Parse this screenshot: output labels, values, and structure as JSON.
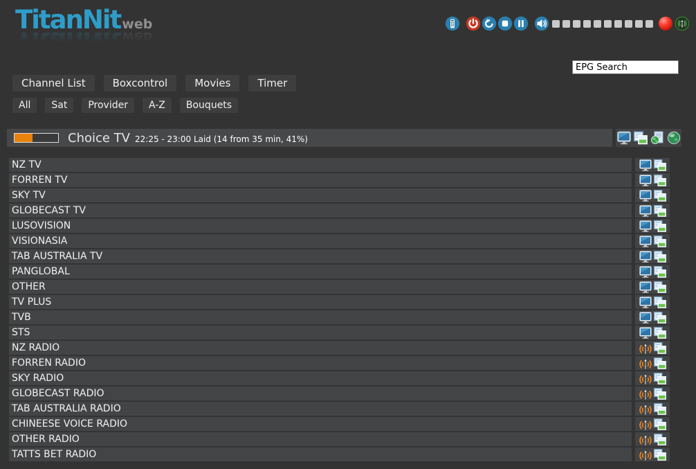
{
  "app": {
    "title": "TitanNit",
    "title_suffix": "web"
  },
  "header_toolbar": {
    "buttons": [
      {
        "id": "remote",
        "icon": "remote-control-icon"
      },
      {
        "id": "power",
        "icon": "power-icon"
      },
      {
        "id": "refresh",
        "icon": "refresh-icon"
      },
      {
        "id": "stop",
        "icon": "stop-icon"
      },
      {
        "id": "pause",
        "icon": "pause-icon"
      }
    ],
    "volume_icon": "speaker-icon",
    "volume_segments": 10,
    "record_indicator_icon": "red-ball-icon",
    "stream_status_icon": "antenna-icon"
  },
  "epg_search": {
    "value": "EPG Search"
  },
  "nav_tabs": [
    {
      "label": "Channel List"
    },
    {
      "label": "Boxcontrol"
    },
    {
      "label": "Movies"
    },
    {
      "label": "Timer"
    }
  ],
  "filter_tabs": [
    {
      "label": "All"
    },
    {
      "label": "Sat"
    },
    {
      "label": "Provider"
    },
    {
      "label": "A-Z"
    },
    {
      "label": "Bouquets"
    }
  ],
  "now_playing": {
    "channel_name": "Choice TV",
    "epg_info": "22:25 - 23:00 Laid (14 from 35 min, 41%)",
    "progress_percent": 41,
    "action_icons": [
      "switch-tv-icon",
      "copy-epg-icon",
      "epg-document-icon",
      "web-globe-icon"
    ]
  },
  "channel_list": {
    "rows": [
      {
        "label": "NZ TV",
        "type": "tv"
      },
      {
        "label": "FORREN TV",
        "type": "tv"
      },
      {
        "label": "SKY TV",
        "type": "tv"
      },
      {
        "label": "GLOBECAST TV",
        "type": "tv"
      },
      {
        "label": "LUSOVISION",
        "type": "tv"
      },
      {
        "label": "VISIONASIA",
        "type": "tv"
      },
      {
        "label": "TAB AUSTRALIA TV",
        "type": "tv"
      },
      {
        "label": "PANGLOBAL",
        "type": "tv"
      },
      {
        "label": "OTHER",
        "type": "tv"
      },
      {
        "label": "TV PLUS",
        "type": "tv"
      },
      {
        "label": "TVB",
        "type": "tv"
      },
      {
        "label": "STS",
        "type": "tv"
      },
      {
        "label": "NZ RADIO",
        "type": "radio"
      },
      {
        "label": "FORREN RADIO",
        "type": "radio"
      },
      {
        "label": "SKY RADIO",
        "type": "radio"
      },
      {
        "label": "GLOBECAST RADIO",
        "type": "radio"
      },
      {
        "label": "TAB AUSTRALIA RADIO",
        "type": "radio"
      },
      {
        "label": "CHINEESE VOICE RADIO",
        "type": "radio"
      },
      {
        "label": "OTHER RADIO",
        "type": "radio"
      },
      {
        "label": "TATTS BET RADIO",
        "type": "radio"
      }
    ]
  },
  "colors": {
    "background": "#333333",
    "panel": "#424446",
    "now_bar": "#46484a",
    "button": "#3e3e3e",
    "logo_blue": "#2e9dc9",
    "toolbar_blue": "#2b7fad",
    "power_red": "#c23a23",
    "progress_orange": "#e8820c",
    "radio_orange": "#e8821e",
    "record_red": "#d32f2f",
    "stream_green": "#43a047"
  }
}
